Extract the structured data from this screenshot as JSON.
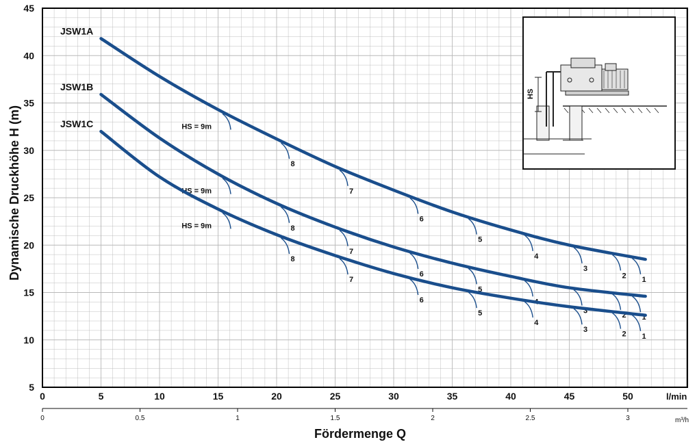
{
  "chart_data": {
    "type": "line",
    "ylabel": "Dynamische Druckhöhe H (m)",
    "xlabel": "Fördermenge Q",
    "x_unit": "l/min",
    "x2_unit": "m³/h",
    "xlim": [
      0,
      55
    ],
    "ylim": [
      5,
      45
    ],
    "x_ticks": [
      0,
      5,
      10,
      15,
      20,
      25,
      30,
      35,
      40,
      45,
      50
    ],
    "y_ticks": [
      5,
      10,
      15,
      20,
      25,
      30,
      35,
      40,
      45
    ],
    "x2_ticks": [
      "0",
      "0.5",
      "1",
      "1.5",
      "2",
      "2.5",
      "3"
    ],
    "grid": true,
    "series": [
      {
        "name": "JSW1A",
        "x": [
          5,
          10,
          15,
          20,
          25,
          30,
          35,
          40,
          45,
          51.5
        ],
        "y": [
          41.8,
          37.8,
          34.3,
          31.2,
          28.3,
          25.8,
          23.5,
          21.6,
          20.0,
          18.5
        ],
        "hs_labels": [
          "HS = 9m",
          "8",
          "7",
          "6",
          "5",
          "4",
          "3",
          "2",
          "1"
        ],
        "hs_x": [
          15.5,
          20.5,
          25.5,
          31.5,
          36.5,
          41.3,
          45.5,
          48.8,
          50.5
        ]
      },
      {
        "name": "JSW1B",
        "x": [
          5,
          10,
          15,
          20,
          25,
          30,
          35,
          40,
          45,
          51.5
        ],
        "y": [
          35.9,
          31.3,
          27.5,
          24.4,
          21.9,
          19.8,
          18.1,
          16.7,
          15.5,
          14.6
        ],
        "hs_labels": [
          "HS = 9m",
          "8",
          "7",
          "6",
          "5",
          "4",
          "3",
          "2",
          "1"
        ],
        "hs_x": [
          15.5,
          20.5,
          25.5,
          31.5,
          36.5,
          41.3,
          45.5,
          48.8,
          50.5
        ]
      },
      {
        "name": "JSW1C",
        "x": [
          5,
          10,
          15,
          20,
          25,
          30,
          35,
          40,
          45,
          51.5
        ],
        "y": [
          32.0,
          27.2,
          23.8,
          21.1,
          18.9,
          17.0,
          15.5,
          14.4,
          13.5,
          12.6
        ],
        "hs_labels": [
          "HS = 9m",
          "8",
          "7",
          "6",
          "5",
          "4",
          "3",
          "2",
          "1"
        ],
        "hs_x": [
          15.5,
          20.5,
          25.5,
          31.5,
          36.5,
          41.3,
          45.5,
          48.8,
          50.5
        ]
      }
    ],
    "inset_label": "HS",
    "colors": {
      "curve": "#1a4e8c",
      "grid": "#b8b8b8",
      "frame": "#000000"
    }
  }
}
